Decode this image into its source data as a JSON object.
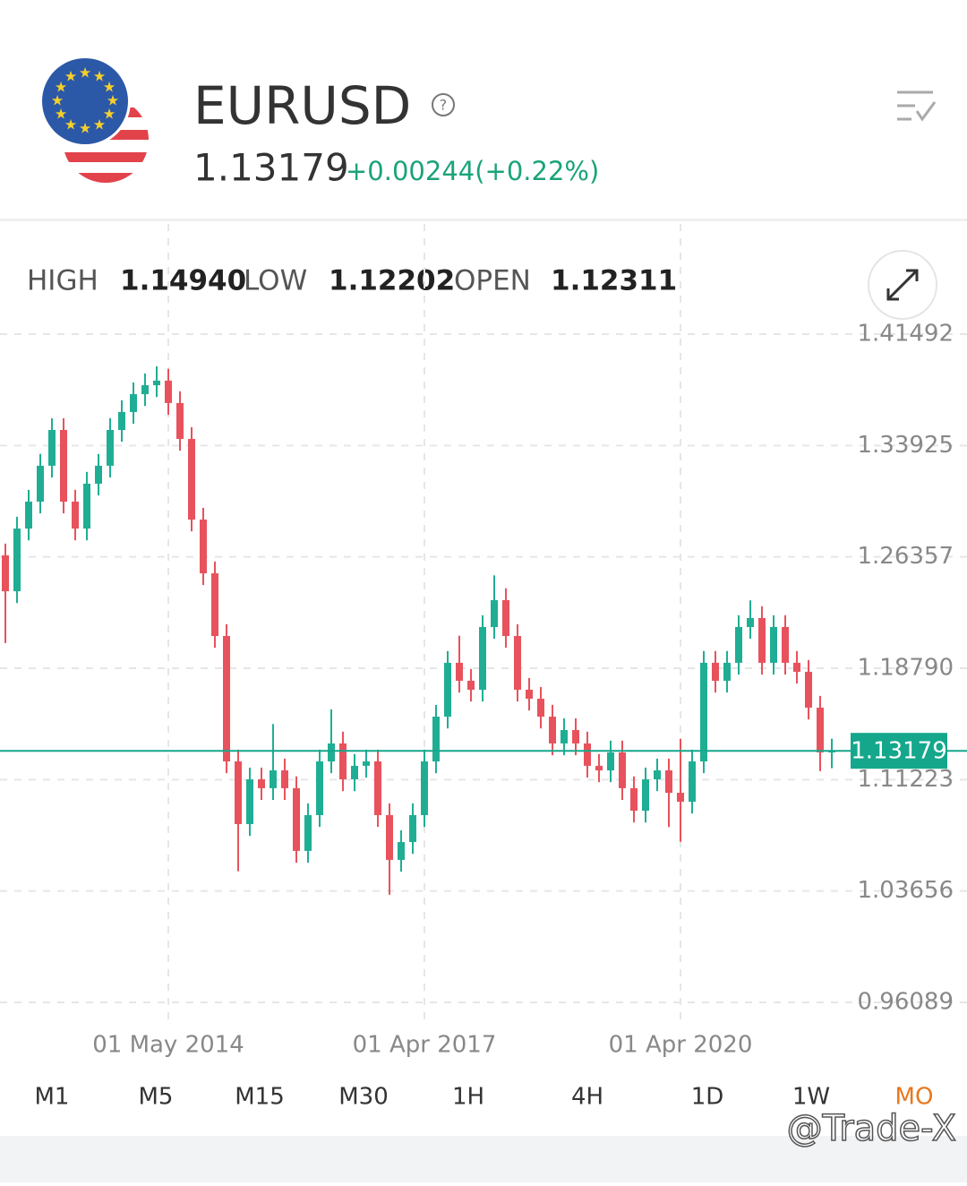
{
  "header": {
    "symbol": "EURUSD",
    "price": "1.13179",
    "change": "+0.00244(+0.22%)"
  },
  "stats": {
    "high_label": "HIGH",
    "high": "1.14940",
    "low_label": "LOW",
    "low": "1.12202",
    "open_label": "OPEN",
    "open": "1.12311"
  },
  "chart_data": {
    "type": "candlestick",
    "categories": [
      null,
      null,
      null,
      null,
      null,
      null,
      null,
      null,
      null,
      null,
      null,
      null,
      null,
      null,
      "01 May 2014",
      null,
      null,
      null,
      null,
      null,
      null,
      null,
      null,
      null,
      null,
      null,
      null,
      null,
      null,
      null,
      null,
      null,
      null,
      null,
      null,
      null,
      "01 Apr 2017",
      null,
      null,
      null,
      null,
      null,
      null,
      null,
      null,
      null,
      null,
      null,
      null,
      null,
      null,
      null,
      null,
      null,
      null,
      null,
      null,
      null,
      "01 Apr 2020",
      null,
      null,
      null,
      null,
      null,
      null,
      null,
      null,
      null,
      null,
      null,
      null,
      null
    ],
    "open": [
      1.2646,
      1.2402,
      1.2828,
      1.3011,
      1.3255,
      1.3498,
      1.3011,
      1.2828,
      1.3133,
      1.3255,
      1.3498,
      1.362,
      1.3741,
      1.3802,
      1.3833,
      1.3681,
      1.3437,
      1.2889,
      1.2524,
      1.2098,
      1.1246,
      1.082,
      1.1124,
      1.1064,
      1.1185,
      1.1064,
      1.0638,
      1.0881,
      1.1246,
      1.1368,
      1.1124,
      1.1216,
      1.1246,
      1.0881,
      1.0577,
      1.0698,
      1.0881,
      1.1246,
      1.155,
      1.1916,
      1.1794,
      1.1733,
      1.2159,
      1.2342,
      1.2098,
      1.1733,
      1.1672,
      1.155,
      1.1368,
      1.1459,
      1.1368,
      1.1216,
      1.1185,
      1.1307,
      1.1064,
      1.0911,
      1.1124,
      1.1185,
      1.1033,
      1.0972,
      1.1246,
      1.1916,
      1.1794,
      1.1916,
      1.2159,
      1.222,
      1.1916,
      1.2159,
      1.1916,
      1.1855,
      1.1611,
      1.1307
    ],
    "high": [
      1.2726,
      1.2908,
      1.3091,
      1.3335,
      1.3578,
      1.3578,
      1.3091,
      1.3213,
      1.3335,
      1.3578,
      1.37,
      1.3821,
      1.3882,
      1.393,
      1.3913,
      1.3761,
      1.3517,
      1.2969,
      1.2604,
      1.2178,
      1.1326,
      1.1204,
      1.1204,
      1.15,
      1.1265,
      1.1144,
      1.0961,
      1.1326,
      1.16,
      1.1448,
      1.1296,
      1.1326,
      1.1326,
      1.0961,
      1.0778,
      1.0961,
      1.1326,
      1.163,
      1.1996,
      1.21,
      1.1874,
      1.2239,
      1.251,
      1.2422,
      1.2178,
      1.1813,
      1.1752,
      1.163,
      1.1539,
      1.1539,
      1.1448,
      1.1296,
      1.1387,
      1.1387,
      1.1144,
      1.1204,
      1.1265,
      1.1265,
      1.14,
      1.1326,
      1.1996,
      1.1996,
      1.1996,
      1.2239,
      1.234,
      1.23,
      1.2239,
      1.2239,
      1.1996,
      1.1935,
      1.1691,
      1.14
    ],
    "low": [
      1.205,
      1.2322,
      1.2748,
      1.2931,
      1.3175,
      1.2931,
      1.2748,
      1.2748,
      1.3053,
      1.3175,
      1.3418,
      1.354,
      1.3661,
      1.3722,
      1.3601,
      1.3357,
      1.2809,
      1.2444,
      1.2018,
      1.1166,
      1.05,
      1.074,
      1.0984,
      1.0984,
      1.0984,
      1.0558,
      1.0558,
      1.0801,
      1.1166,
      1.1044,
      1.1044,
      1.1136,
      1.0801,
      1.034,
      1.0497,
      1.0618,
      1.0801,
      1.1166,
      1.147,
      1.1714,
      1.1653,
      1.1653,
      1.2079,
      1.2018,
      1.1653,
      1.1592,
      1.147,
      1.1288,
      1.1288,
      1.1288,
      1.1136,
      1.1105,
      1.1105,
      1.0984,
      1.0831,
      1.0831,
      1.1044,
      1.08,
      1.07,
      1.0892,
      1.1166,
      1.1714,
      1.1714,
      1.1836,
      1.2079,
      1.1836,
      1.1836,
      1.1836,
      1.1775,
      1.1531,
      1.118,
      1.12
    ],
    "close": [
      1.2402,
      1.2828,
      1.3011,
      1.3255,
      1.3498,
      1.3011,
      1.2828,
      1.3133,
      1.3255,
      1.3498,
      1.362,
      1.3741,
      1.3802,
      1.3833,
      1.3681,
      1.3437,
      1.2889,
      1.2524,
      1.2098,
      1.1246,
      1.082,
      1.1124,
      1.1064,
      1.1185,
      1.1064,
      1.0638,
      1.0881,
      1.1246,
      1.1368,
      1.1124,
      1.1216,
      1.1246,
      1.0881,
      1.0577,
      1.0698,
      1.0881,
      1.1246,
      1.155,
      1.1916,
      1.1794,
      1.1733,
      1.2159,
      1.2342,
      1.2098,
      1.1733,
      1.1672,
      1.155,
      1.1368,
      1.1459,
      1.1368,
      1.1216,
      1.1185,
      1.1307,
      1.1064,
      1.0911,
      1.1124,
      1.1185,
      1.1033,
      1.0972,
      1.1246,
      1.1916,
      1.1794,
      1.1916,
      1.2159,
      1.222,
      1.1916,
      1.2159,
      1.1916,
      1.1855,
      1.1611,
      1.1307,
      1.13179
    ],
    "up_color": "#1fae94",
    "down_color": "#e8525c",
    "ylim": [
      0.9481,
      1.435
    ],
    "yticks": [
      1.41492,
      1.33925,
      1.26357,
      {
        "value": 1.1879,
        "label": "1.18790"
      },
      1.11223,
      1.03656,
      0.96089
    ],
    "grid": true,
    "last_price": 1.13179,
    "last_price_color": "#14a78c"
  },
  "timeframes": [
    "M1",
    "M5",
    "M15",
    "M30",
    "1H",
    "4H",
    "1D",
    "1W",
    "MO"
  ],
  "watermark": "@Trade-X"
}
